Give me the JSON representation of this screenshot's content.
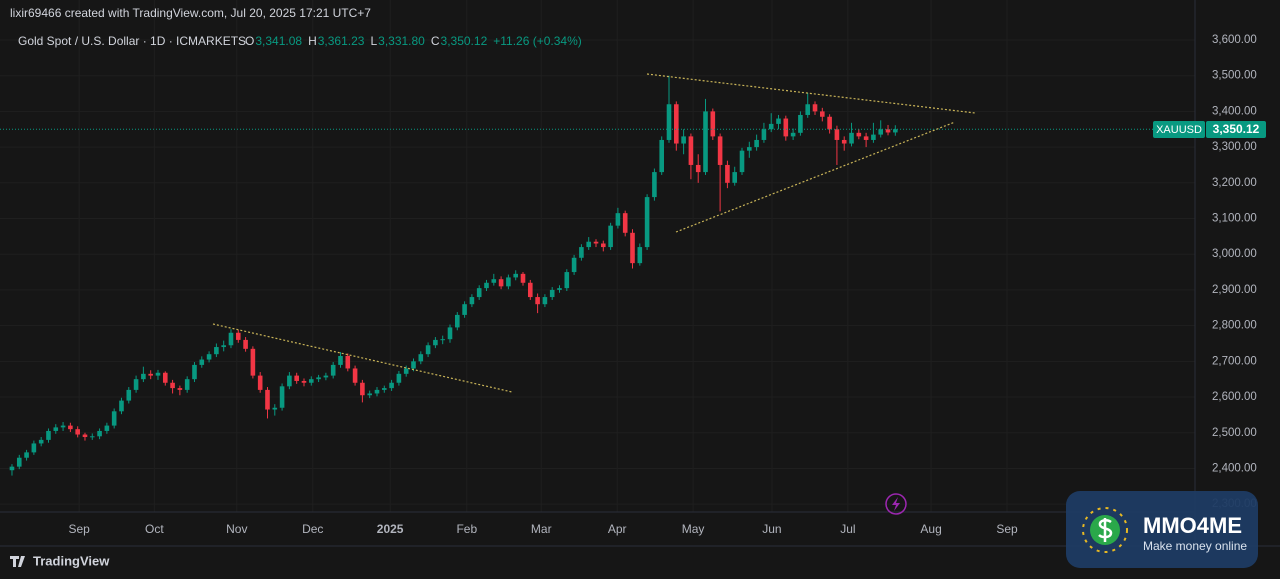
{
  "header": {
    "author_line": "lixir69466 created with TradingView.com, Jul 20, 2025 17:21 UTC+7",
    "instrument": "Gold Spot / U.S. Dollar · 1D · ICMARKETS",
    "ohlc": [
      {
        "key": "O",
        "value": "3,341.08"
      },
      {
        "key": "H",
        "value": "3,361.23"
      },
      {
        "key": "L",
        "value": "3,331.80"
      },
      {
        "key": "C",
        "value": "3,350.12"
      }
    ],
    "change": "+11.26 (+0.34%)",
    "symbol_tag": "XAUUSD",
    "price_tag": "3,350.12"
  },
  "footer": {
    "brand": "TradingView"
  },
  "watermark": {
    "title": "MMO4ME",
    "subtitle": "Make money online"
  },
  "chart_data": {
    "type": "candlestick",
    "up_color": "#089981",
    "down_color": "#f23645",
    "xlim": [
      -1.64,
      162.05
    ],
    "ylim": [
      2278,
      3712
    ],
    "grid": true,
    "xticks": [
      {
        "value": 9.2,
        "label": "Sep"
      },
      {
        "value": 19.5,
        "label": "Oct"
      },
      {
        "value": 30.8,
        "label": "Nov"
      },
      {
        "value": 41.2,
        "label": "Dec"
      },
      {
        "value": 51.8,
        "label": "2025"
      },
      {
        "value": 62.3,
        "label": "Feb"
      },
      {
        "value": 72.5,
        "label": "Mar"
      },
      {
        "value": 82.9,
        "label": "Apr"
      },
      {
        "value": 93.3,
        "label": "May"
      },
      {
        "value": 104.1,
        "label": "Jun"
      },
      {
        "value": 114.5,
        "label": "Jul"
      },
      {
        "value": 125.9,
        "label": "Aug"
      },
      {
        "value": 136.3,
        "label": "Sep"
      }
    ],
    "yticks": [
      {
        "value": 2300,
        "label": "2,300.00"
      },
      {
        "value": 2400,
        "label": "2,400.00"
      },
      {
        "value": 2500,
        "label": "2,500.00"
      },
      {
        "value": 2600,
        "label": "2,600.00"
      },
      {
        "value": 2700,
        "label": "2,700.00"
      },
      {
        "value": 2800,
        "label": "2,800.00"
      },
      {
        "value": 2900,
        "label": "2,900.00"
      },
      {
        "value": 3000,
        "label": "3,000.00"
      },
      {
        "value": 3100,
        "label": "3,100.00"
      },
      {
        "value": 3200,
        "label": "3,200.00"
      },
      {
        "value": 3300,
        "label": "3,300.00"
      },
      {
        "value": 3400,
        "label": "3,400.00"
      },
      {
        "value": 3500,
        "label": "3,500.00"
      },
      {
        "value": 3600,
        "label": "3,600.00"
      }
    ],
    "candles": [
      [
        2395,
        2412,
        2380,
        2405
      ],
      [
        2405,
        2438,
        2398,
        2430
      ],
      [
        2430,
        2452,
        2422,
        2445
      ],
      [
        2445,
        2478,
        2438,
        2470
      ],
      [
        2470,
        2488,
        2462,
        2480
      ],
      [
        2480,
        2512,
        2472,
        2505
      ],
      [
        2505,
        2524,
        2497,
        2515
      ],
      [
        2515,
        2530,
        2505,
        2520
      ],
      [
        2520,
        2528,
        2502,
        2510
      ],
      [
        2510,
        2518,
        2487,
        2495
      ],
      [
        2495,
        2500,
        2478,
        2488
      ],
      [
        2488,
        2498,
        2480,
        2490
      ],
      [
        2490,
        2512,
        2482,
        2505
      ],
      [
        2505,
        2528,
        2497,
        2520
      ],
      [
        2520,
        2568,
        2512,
        2560
      ],
      [
        2560,
        2598,
        2552,
        2590
      ],
      [
        2590,
        2628,
        2582,
        2620
      ],
      [
        2620,
        2660,
        2612,
        2650
      ],
      [
        2650,
        2685,
        2642,
        2665
      ],
      [
        2665,
        2675,
        2650,
        2660
      ],
      [
        2660,
        2676,
        2648,
        2668
      ],
      [
        2668,
        2672,
        2632,
        2640
      ],
      [
        2640,
        2648,
        2610,
        2625
      ],
      [
        2625,
        2632,
        2605,
        2620
      ],
      [
        2620,
        2658,
        2612,
        2650
      ],
      [
        2650,
        2698,
        2642,
        2690
      ],
      [
        2690,
        2714,
        2682,
        2705
      ],
      [
        2705,
        2728,
        2697,
        2720
      ],
      [
        2720,
        2750,
        2712,
        2740
      ],
      [
        2740,
        2758,
        2728,
        2745
      ],
      [
        2745,
        2790,
        2737,
        2780
      ],
      [
        2780,
        2788,
        2752,
        2760
      ],
      [
        2760,
        2768,
        2727,
        2735
      ],
      [
        2735,
        2742,
        2652,
        2660
      ],
      [
        2660,
        2670,
        2612,
        2620
      ],
      [
        2620,
        2628,
        2540,
        2565
      ],
      [
        2565,
        2580,
        2548,
        2570
      ],
      [
        2570,
        2638,
        2562,
        2630
      ],
      [
        2630,
        2670,
        2622,
        2660
      ],
      [
        2660,
        2668,
        2637,
        2645
      ],
      [
        2645,
        2652,
        2630,
        2640
      ],
      [
        2640,
        2658,
        2632,
        2650
      ],
      [
        2650,
        2662,
        2642,
        2655
      ],
      [
        2655,
        2668,
        2647,
        2660
      ],
      [
        2660,
        2698,
        2652,
        2690
      ],
      [
        2690,
        2726,
        2682,
        2715
      ],
      [
        2715,
        2722,
        2672,
        2680
      ],
      [
        2680,
        2688,
        2632,
        2640
      ],
      [
        2640,
        2648,
        2585,
        2605
      ],
      [
        2605,
        2618,
        2597,
        2610
      ],
      [
        2610,
        2628,
        2602,
        2620
      ],
      [
        2620,
        2632,
        2612,
        2625
      ],
      [
        2625,
        2648,
        2617,
        2640
      ],
      [
        2640,
        2673,
        2632,
        2665
      ],
      [
        2665,
        2688,
        2657,
        2680
      ],
      [
        2680,
        2708,
        2672,
        2700
      ],
      [
        2700,
        2728,
        2692,
        2720
      ],
      [
        2720,
        2753,
        2712,
        2745
      ],
      [
        2745,
        2768,
        2737,
        2760
      ],
      [
        2760,
        2772,
        2748,
        2762
      ],
      [
        2762,
        2803,
        2752,
        2795
      ],
      [
        2795,
        2838,
        2787,
        2830
      ],
      [
        2830,
        2868,
        2822,
        2860
      ],
      [
        2860,
        2888,
        2852,
        2880
      ],
      [
        2880,
        2913,
        2872,
        2905
      ],
      [
        2905,
        2928,
        2897,
        2920
      ],
      [
        2920,
        2945,
        2912,
        2930
      ],
      [
        2930,
        2938,
        2902,
        2910
      ],
      [
        2910,
        2943,
        2902,
        2935
      ],
      [
        2935,
        2955,
        2927,
        2945
      ],
      [
        2945,
        2950,
        2912,
        2920
      ],
      [
        2920,
        2928,
        2872,
        2880
      ],
      [
        2880,
        2890,
        2835,
        2860
      ],
      [
        2860,
        2888,
        2852,
        2880
      ],
      [
        2880,
        2908,
        2872,
        2900
      ],
      [
        2900,
        2913,
        2892,
        2905
      ],
      [
        2905,
        2958,
        2897,
        2950
      ],
      [
        2950,
        2998,
        2942,
        2990
      ],
      [
        2990,
        3028,
        2982,
        3020
      ],
      [
        3020,
        3048,
        3012,
        3035
      ],
      [
        3035,
        3042,
        3020,
        3030
      ],
      [
        3030,
        3038,
        3008,
        3020
      ],
      [
        3020,
        3088,
        3012,
        3080
      ],
      [
        3080,
        3130,
        3072,
        3115
      ],
      [
        3115,
        3122,
        3050,
        3060
      ],
      [
        3060,
        3070,
        2960,
        2975
      ],
      [
        2975,
        3030,
        2968,
        3020
      ],
      [
        3020,
        3168,
        3012,
        3160
      ],
      [
        3160,
        3240,
        3150,
        3230
      ],
      [
        3230,
        3330,
        3222,
        3320
      ],
      [
        3320,
        3500,
        3312,
        3420
      ],
      [
        3420,
        3428,
        3290,
        3310
      ],
      [
        3310,
        3350,
        3280,
        3330
      ],
      [
        3330,
        3338,
        3210,
        3250
      ],
      [
        3250,
        3280,
        3200,
        3230
      ],
      [
        3230,
        3435,
        3222,
        3400
      ],
      [
        3400,
        3408,
        3320,
        3330
      ],
      [
        3330,
        3338,
        3120,
        3250
      ],
      [
        3250,
        3262,
        3185,
        3200
      ],
      [
        3200,
        3245,
        3192,
        3230
      ],
      [
        3230,
        3298,
        3222,
        3290
      ],
      [
        3290,
        3315,
        3270,
        3300
      ],
      [
        3300,
        3335,
        3290,
        3320
      ],
      [
        3320,
        3368,
        3312,
        3350
      ],
      [
        3350,
        3395,
        3342,
        3365
      ],
      [
        3365,
        3390,
        3350,
        3380
      ],
      [
        3380,
        3388,
        3318,
        3330
      ],
      [
        3330,
        3352,
        3320,
        3340
      ],
      [
        3340,
        3400,
        3332,
        3390
      ],
      [
        3390,
        3452,
        3382,
        3420
      ],
      [
        3420,
        3428,
        3390,
        3400
      ],
      [
        3400,
        3410,
        3372,
        3385
      ],
      [
        3385,
        3392,
        3338,
        3350
      ],
      [
        3350,
        3360,
        3250,
        3320
      ],
      [
        3320,
        3330,
        3290,
        3310
      ],
      [
        3310,
        3368,
        3302,
        3340
      ],
      [
        3340,
        3350,
        3322,
        3330
      ],
      [
        3330,
        3340,
        3300,
        3320
      ],
      [
        3320,
        3368,
        3312,
        3335
      ],
      [
        3335,
        3375,
        3327,
        3350
      ],
      [
        3350,
        3362,
        3333,
        3341
      ],
      [
        3341.08,
        3361.23,
        3331.8,
        3350.12
      ]
    ]
  }
}
